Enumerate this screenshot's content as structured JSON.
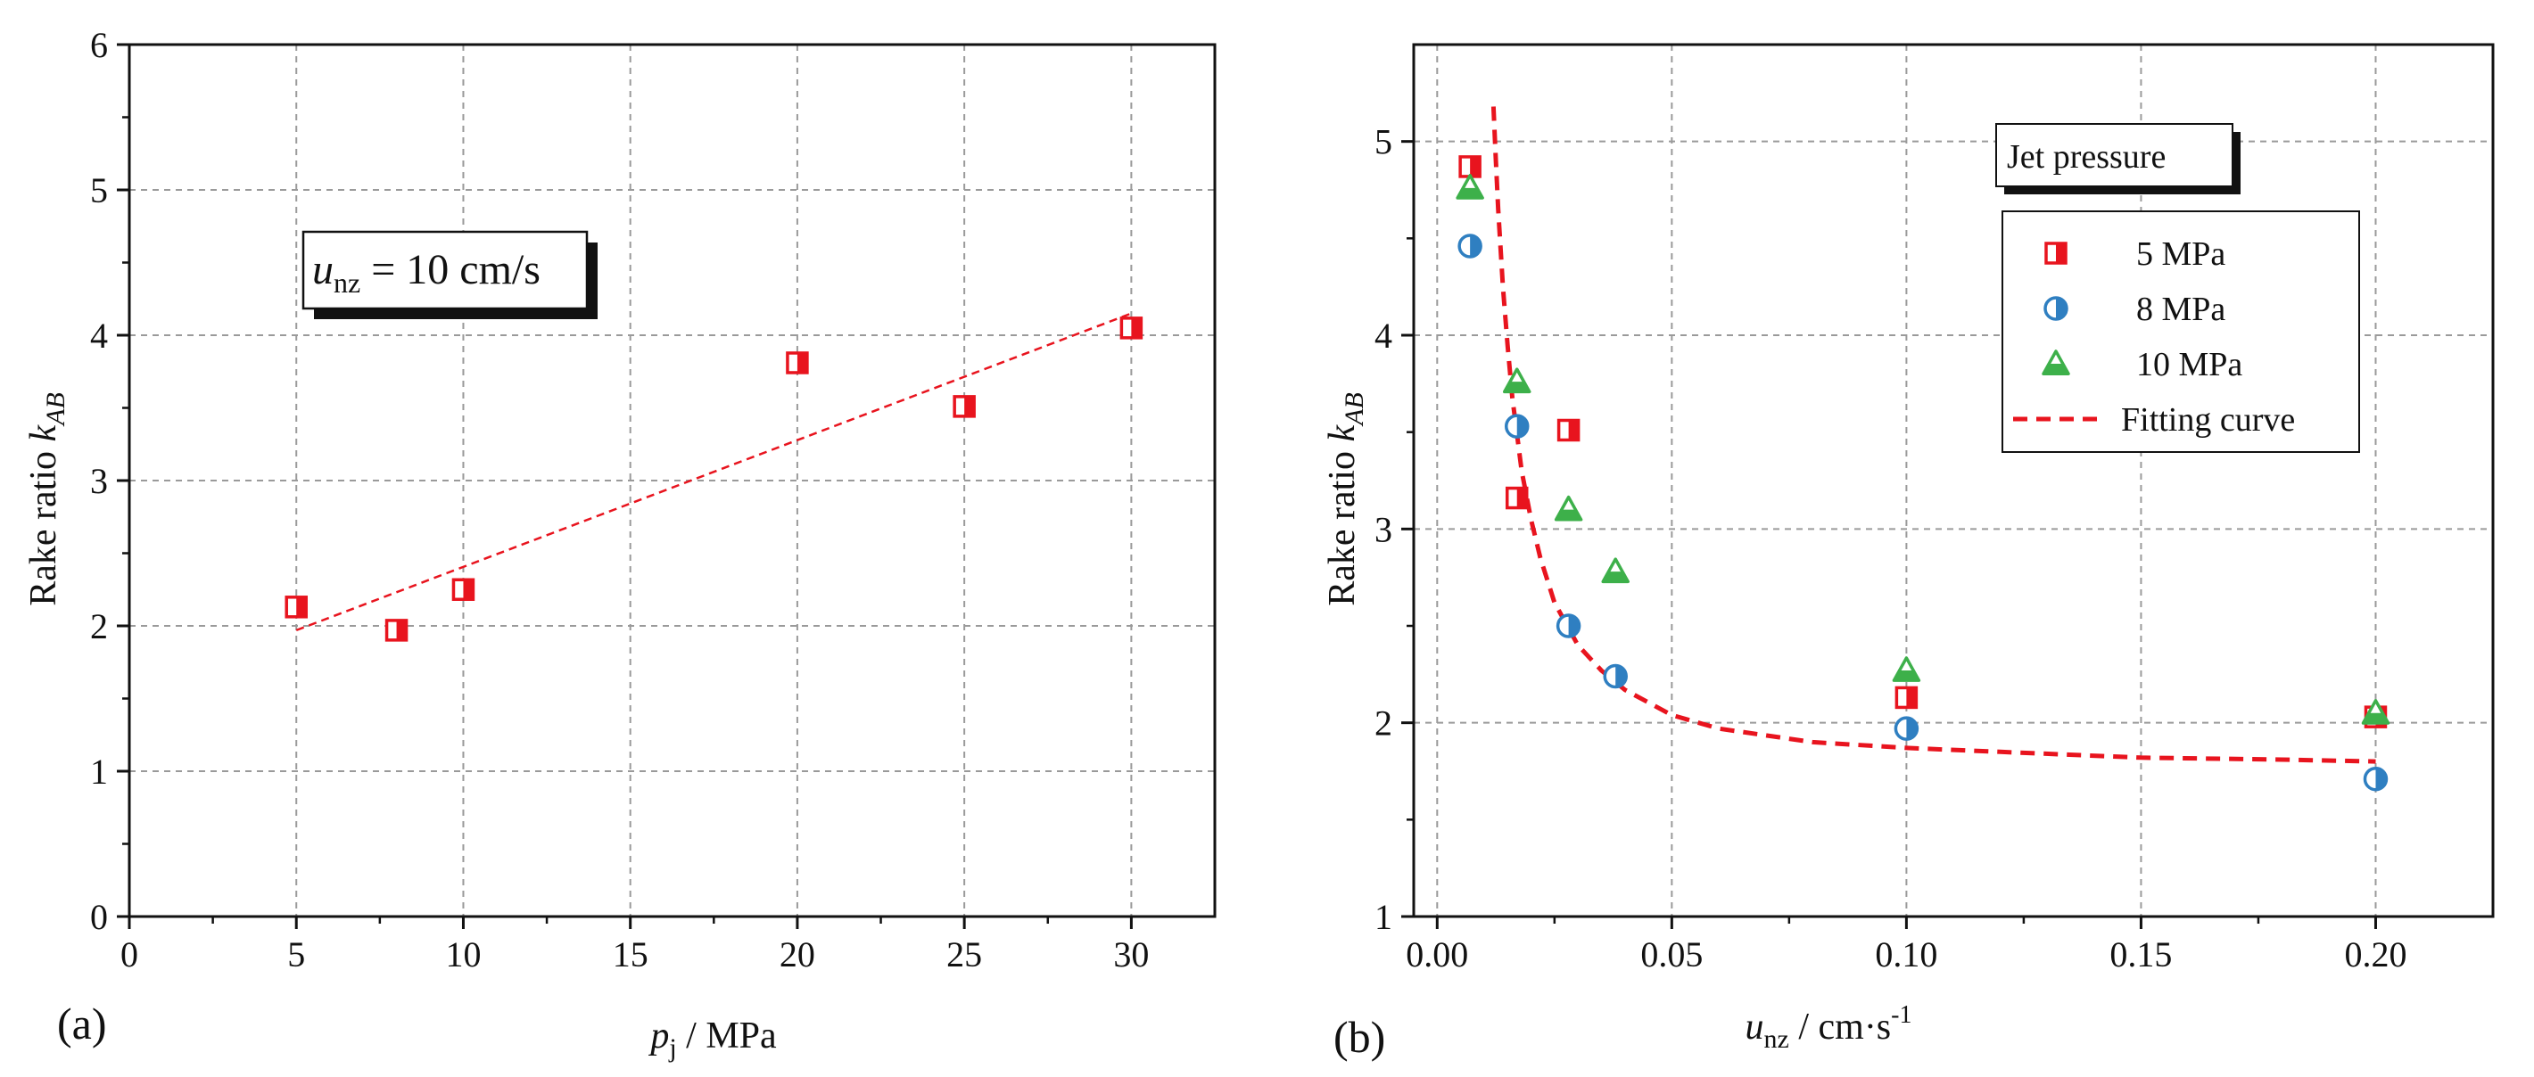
{
  "chart_data": [
    {
      "type": "scatter",
      "panel_label": "(a)",
      "xlabel_var": "p",
      "xlabel_sub": "j",
      "xlabel_unit": " / MPa",
      "ylabel_text": "Rake ratio ",
      "ylabel_var": "k",
      "ylabel_sub": "AB",
      "xlim": [
        0,
        32.5
      ],
      "ylim": [
        0,
        6
      ],
      "xticks": [
        0,
        5,
        10,
        15,
        20,
        25,
        30
      ],
      "yticks": [
        0,
        1,
        2,
        3,
        4,
        5,
        6
      ],
      "grid": true,
      "annotation": {
        "var": "u",
        "sub": "nz",
        "text": " = 10 cm/s"
      },
      "series": [
        {
          "name": "5 MPa",
          "marker": "half-square",
          "color": "#e8141e",
          "x": [
            5,
            8,
            10,
            20,
            25,
            30
          ],
          "y": [
            2.13,
            1.97,
            2.25,
            3.81,
            3.51,
            4.05
          ]
        }
      ],
      "fit_line": {
        "x": [
          5,
          30
        ],
        "y": [
          1.97,
          4.15
        ],
        "color": "#e8141e",
        "style": "dashed"
      }
    },
    {
      "type": "scatter",
      "panel_label": "(b)",
      "xlabel_var": "u",
      "xlabel_sub": "nz",
      "xlabel_unit": " / cm·s",
      "xlabel_sup": "-1",
      "ylabel_text": "Rake ratio ",
      "ylabel_var": "k",
      "ylabel_sub": "AB",
      "xlim": [
        -0.005,
        0.225
      ],
      "ylim": [
        1,
        5.5
      ],
      "xticks": [
        0,
        0.05,
        0.1,
        0.15,
        0.2
      ],
      "xtick_labels": [
        "0.00",
        "0.05",
        "0.10",
        "0.15",
        "0.20"
      ],
      "yticks": [
        1,
        2,
        3,
        4,
        5
      ],
      "grid": true,
      "legend_title": "Jet pressure",
      "legend_position": "top-right",
      "series": [
        {
          "name": "5 MPa",
          "marker": "half-square",
          "color": "#e8141e",
          "x": [
            0.007,
            0.017,
            0.028,
            0.1,
            0.2
          ],
          "y": [
            4.87,
            3.16,
            3.51,
            2.13,
            2.03
          ]
        },
        {
          "name": "8 MPa",
          "marker": "half-circle",
          "color": "#2f7fc1",
          "x": [
            0.007,
            0.017,
            0.028,
            0.038,
            0.1,
            0.2
          ],
          "y": [
            4.46,
            3.53,
            2.5,
            2.24,
            1.97,
            1.71
          ]
        },
        {
          "name": "10 MPa",
          "marker": "half-triangle",
          "color": "#3db04a",
          "x": [
            0.007,
            0.017,
            0.028,
            0.038,
            0.1,
            0.2
          ],
          "y": [
            4.76,
            3.76,
            3.1,
            2.78,
            2.27,
            2.05
          ]
        },
        {
          "name": "Fitting curve",
          "marker": "dashed-line",
          "color": "#e8141e",
          "x": [
            0.012,
            0.0125,
            0.013,
            0.014,
            0.015,
            0.016,
            0.018,
            0.02,
            0.022,
            0.025,
            0.03,
            0.035,
            0.04,
            0.05,
            0.06,
            0.08,
            0.1,
            0.12,
            0.15,
            0.18,
            0.2
          ],
          "y": [
            5.18,
            4.9,
            4.65,
            4.25,
            3.95,
            3.68,
            3.3,
            3.05,
            2.85,
            2.62,
            2.4,
            2.27,
            2.17,
            2.04,
            1.97,
            1.9,
            1.87,
            1.85,
            1.82,
            1.81,
            1.8
          ]
        }
      ]
    }
  ]
}
